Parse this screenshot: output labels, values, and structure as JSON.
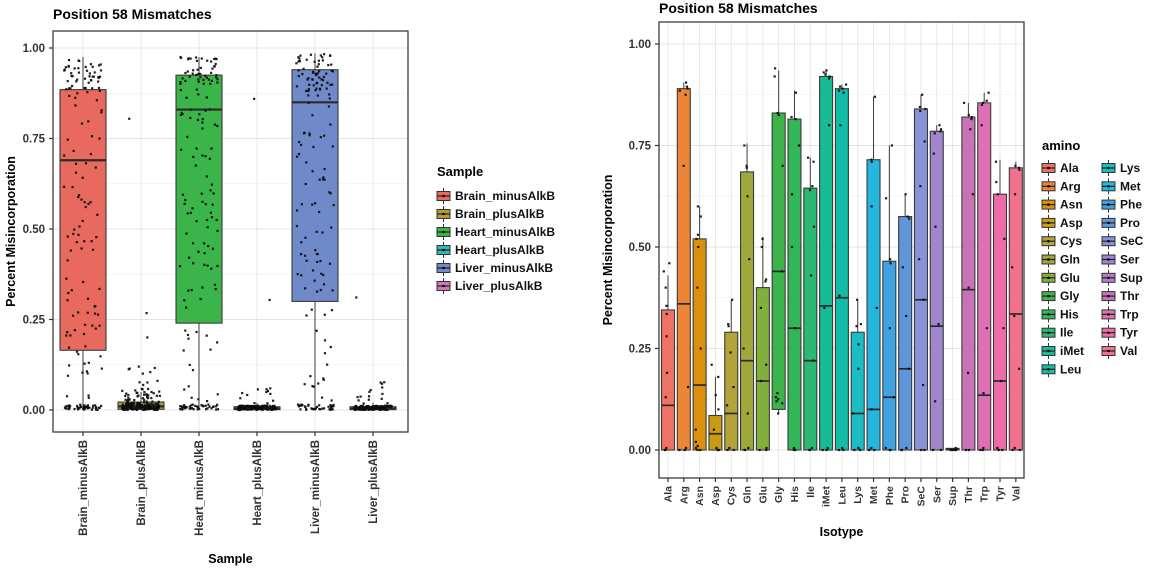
{
  "page": {
    "background": "#ffffff"
  },
  "chart_data": [
    {
      "id": "sample-plot",
      "type": "box",
      "title": "Position 58 Mismatches",
      "xlabel": "Sample",
      "ylabel": "Percent Misincorporation",
      "ylim": [
        0,
        1
      ],
      "yticks": [
        0,
        0.25,
        0.5,
        0.75,
        1.0
      ],
      "ytick_labels": [
        "0.00",
        "0.25",
        "0.50",
        "0.75",
        "1.00"
      ],
      "grid": true,
      "legend": {
        "title": "Sample",
        "position": "right",
        "columns": 1
      },
      "categories": [
        "Brain_minusAlkB",
        "Brain_plusAlkB",
        "Heart_minusAlkB",
        "Heart_plusAlkB",
        "Liver_minusAlkB",
        "Liver_plusAlkB"
      ],
      "boxes": [
        {
          "category": "Brain_minusAlkB",
          "color": "#E8695E",
          "min": 0,
          "q1": 0.165,
          "median": 0.69,
          "q3": 0.885,
          "max": 0.975,
          "jitter_clusters": [
            {
              "lo": 0,
              "hi": 0.015,
              "n": 45
            },
            {
              "lo": 0.02,
              "hi": 0.165,
              "n": 14
            },
            {
              "lo": 0.17,
              "hi": 0.88,
              "n": 70
            },
            {
              "lo": 0.88,
              "hi": 0.975,
              "n": 46
            }
          ]
        },
        {
          "category": "Brain_plusAlkB",
          "color": "#B29C35",
          "min": 0,
          "q1": 0.002,
          "median": 0.01,
          "q3": 0.022,
          "max": 0.05,
          "jitter_clusters": [
            {
              "lo": 0,
              "hi": 0.02,
              "n": 130
            },
            {
              "lo": 0.02,
              "hi": 0.06,
              "n": 40
            },
            {
              "lo": 0.06,
              "hi": 0.12,
              "n": 10
            },
            {
              "lo": 0.2,
              "hi": 0.3,
              "n": 2
            },
            {
              "lo": 0.795,
              "hi": 0.805,
              "n": 1
            }
          ]
        },
        {
          "category": "Heart_minusAlkB",
          "color": "#3BB44A",
          "min": 0,
          "q1": 0.24,
          "median": 0.83,
          "q3": 0.925,
          "max": 0.975,
          "jitter_clusters": [
            {
              "lo": 0,
              "hi": 0.015,
              "n": 40
            },
            {
              "lo": 0.02,
              "hi": 0.24,
              "n": 16
            },
            {
              "lo": 0.24,
              "hi": 0.92,
              "n": 75
            },
            {
              "lo": 0.9,
              "hi": 0.98,
              "n": 42
            }
          ]
        },
        {
          "category": "Heart_plusAlkB",
          "color": "#2FBBB1",
          "min": 0,
          "q1": 0.001,
          "median": 0.004,
          "q3": 0.009,
          "max": 0.02,
          "jitter_clusters": [
            {
              "lo": 0,
              "hi": 0.012,
              "n": 150
            },
            {
              "lo": 0.015,
              "hi": 0.06,
              "n": 12
            },
            {
              "lo": 0.3,
              "hi": 0.32,
              "n": 1
            },
            {
              "lo": 0.855,
              "hi": 0.865,
              "n": 1
            }
          ]
        },
        {
          "category": "Liver_minusAlkB",
          "color": "#7089C8",
          "min": 0,
          "q1": 0.3,
          "median": 0.85,
          "q3": 0.94,
          "max": 0.985,
          "jitter_clusters": [
            {
              "lo": 0,
              "hi": 0.015,
              "n": 35
            },
            {
              "lo": 0.02,
              "hi": 0.3,
              "n": 18
            },
            {
              "lo": 0.31,
              "hi": 0.93,
              "n": 68
            },
            {
              "lo": 0.88,
              "hi": 0.985,
              "n": 52
            },
            {
              "lo": 0.905,
              "hi": 0.915,
              "n": 1
            }
          ]
        },
        {
          "category": "Liver_plusAlkB",
          "color": "#D378B9",
          "min": 0,
          "q1": 0.001,
          "median": 0.004,
          "q3": 0.009,
          "max": 0.02,
          "jitter_clusters": [
            {
              "lo": 0,
              "hi": 0.012,
              "n": 140
            },
            {
              "lo": 0.015,
              "hi": 0.08,
              "n": 15
            },
            {
              "lo": 0.3,
              "hi": 0.32,
              "n": 1
            }
          ]
        }
      ]
    },
    {
      "id": "isotype-plot",
      "type": "box",
      "title": "Position 58 Mismatches",
      "xlabel": "Isotype",
      "ylabel": "Percent Misincorporation",
      "ylim": [
        0,
        1
      ],
      "yticks": [
        0,
        0.25,
        0.5,
        0.75,
        1.0
      ],
      "ytick_labels": [
        "0.00",
        "0.25",
        "0.50",
        "0.75",
        "1.00"
      ],
      "grid": true,
      "legend": {
        "title": "amino",
        "position": "right",
        "columns": 2
      },
      "categories": [
        "Ala",
        "Arg",
        "Asn",
        "Asp",
        "Cys",
        "Gln",
        "Glu",
        "Gly",
        "His",
        "Ile",
        "iMet",
        "Leu",
        "Lys",
        "Met",
        "Phe",
        "Pro",
        "SeC",
        "Ser",
        "Sup",
        "Thr",
        "Trp",
        "Tyr",
        "Val"
      ],
      "boxes": [
        {
          "category": "Ala",
          "color": "#EF7365",
          "min": 0,
          "q1": 0,
          "median": 0.11,
          "q3": 0.345,
          "max": 0.43,
          "points": [
            0,
            0,
            0.005,
            0.13,
            0.19,
            0.28,
            0.335,
            0.355,
            0.4,
            0.44,
            0.46
          ]
        },
        {
          "category": "Arg",
          "color": "#EC8538",
          "min": 0,
          "q1": 0,
          "median": 0.36,
          "q3": 0.89,
          "max": 0.905,
          "points": [
            0,
            0,
            0.005,
            0.155,
            0.7,
            0.875,
            0.885,
            0.89,
            0.895,
            0.905
          ]
        },
        {
          "category": "Asn",
          "color": "#DB9010",
          "min": 0,
          "q1": 0,
          "median": 0.16,
          "q3": 0.52,
          "max": 0.6,
          "points": [
            0,
            0,
            0.005,
            0.01,
            0.02,
            0.05,
            0.25,
            0.4,
            0.5,
            0.52,
            0.53,
            0.575,
            0.6
          ]
        },
        {
          "category": "Asp",
          "color": "#C99B10",
          "min": 0,
          "q1": 0,
          "median": 0.04,
          "q3": 0.085,
          "max": 0.18,
          "points": [
            0,
            0,
            0.005,
            0.05,
            0.1,
            0.135,
            0.18,
            0.21
          ]
        },
        {
          "category": "Cys",
          "color": "#B4A23B",
          "min": 0,
          "q1": 0,
          "median": 0.09,
          "q3": 0.29,
          "max": 0.37,
          "points": [
            0,
            0,
            0.005,
            0.11,
            0.155,
            0.24,
            0.305,
            0.31,
            0.37
          ]
        },
        {
          "category": "Gln",
          "color": "#9FA83B",
          "min": 0,
          "q1": 0,
          "median": 0.22,
          "q3": 0.685,
          "max": 0.755,
          "points": [
            0,
            0,
            0.005,
            0.09,
            0.25,
            0.47,
            0.625,
            0.695,
            0.7,
            0.75
          ]
        },
        {
          "category": "Glu",
          "color": "#82AF3C",
          "min": 0,
          "q1": 0,
          "median": 0.17,
          "q3": 0.4,
          "max": 0.525,
          "points": [
            0,
            0,
            0.005,
            0.17,
            0.21,
            0.35,
            0.415,
            0.42,
            0.5,
            0.52
          ]
        },
        {
          "category": "Gly",
          "color": "#3CB44B",
          "min": 0.09,
          "q1": 0.1,
          "median": 0.44,
          "q3": 0.83,
          "max": 0.935,
          "points": [
            0.09,
            0.115,
            0.12,
            0.125,
            0.13,
            0.14,
            0.44,
            0.7,
            0.825,
            0.83,
            0.92,
            0.94
          ]
        },
        {
          "category": "His",
          "color": "#33B657",
          "min": 0,
          "q1": 0,
          "median": 0.3,
          "q3": 0.815,
          "max": 0.885,
          "points": [
            0,
            0,
            0.005,
            0.3,
            0.5,
            0.63,
            0.75,
            0.815,
            0.82,
            0.88
          ]
        },
        {
          "category": "Ile",
          "color": "#2BB873",
          "min": 0,
          "q1": 0,
          "median": 0.22,
          "q3": 0.645,
          "max": 0.72,
          "points": [
            0,
            0,
            0.005,
            0.22,
            0.43,
            0.55,
            0.64,
            0.65,
            0.71,
            0.72
          ]
        },
        {
          "category": "iMet",
          "color": "#17BC95",
          "min": 0,
          "q1": 0,
          "median": 0.355,
          "q3": 0.92,
          "max": 0.935,
          "points": [
            0,
            0,
            0.005,
            0.35,
            0.8,
            0.915,
            0.92,
            0.925,
            0.93,
            0.935
          ]
        },
        {
          "category": "Leu",
          "color": "#12BDA7",
          "min": 0,
          "q1": 0,
          "median": 0.375,
          "q3": 0.89,
          "max": 0.9,
          "points": [
            0,
            0,
            0.005,
            0.38,
            0.8,
            0.88,
            0.885,
            0.89,
            0.895,
            0.9
          ]
        },
        {
          "category": "Lys",
          "color": "#1ABDC3",
          "min": 0,
          "q1": 0,
          "median": 0.09,
          "q3": 0.29,
          "max": 0.37,
          "points": [
            0,
            0,
            0.005,
            0.09,
            0.2,
            0.26,
            0.305,
            0.31,
            0.37
          ]
        },
        {
          "category": "Met",
          "color": "#25B6DE",
          "min": 0,
          "q1": 0,
          "median": 0.1,
          "q3": 0.715,
          "max": 0.87,
          "points": [
            0,
            0,
            0.005,
            0.1,
            0.35,
            0.6,
            0.71,
            0.715,
            0.87
          ]
        },
        {
          "category": "Phe",
          "color": "#3FA2E2",
          "min": 0,
          "q1": 0,
          "median": 0.13,
          "q3": 0.465,
          "max": 0.75,
          "points": [
            0,
            0,
            0.005,
            0.13,
            0.3,
            0.46,
            0.47,
            0.62,
            0.75
          ]
        },
        {
          "category": "Pro",
          "color": "#5E95DB",
          "min": 0,
          "q1": 0,
          "median": 0.2,
          "q3": 0.575,
          "max": 0.63,
          "points": [
            0,
            0,
            0.005,
            0.2,
            0.33,
            0.45,
            0.57,
            0.575,
            0.63
          ]
        },
        {
          "category": "SeC",
          "color": "#8A92D8",
          "min": 0,
          "q1": 0,
          "median": 0.37,
          "q3": 0.84,
          "max": 0.875,
          "points": [
            0,
            0,
            0.16,
            0.37,
            0.47,
            0.65,
            0.76,
            0.835,
            0.84,
            0.845,
            0.875
          ]
        },
        {
          "category": "Ser",
          "color": "#9F86CD",
          "min": 0,
          "q1": 0,
          "median": 0.305,
          "q3": 0.785,
          "max": 0.8,
          "points": [
            0,
            0,
            0.12,
            0.31,
            0.55,
            0.73,
            0.78,
            0.785,
            0.79,
            0.8
          ]
        },
        {
          "category": "Sup",
          "color": "#B77CC9",
          "min": 0,
          "q1": 0,
          "median": 0.002,
          "q3": 0.004,
          "max": 0.006,
          "points": [
            0,
            0,
            0,
            0,
            0.005
          ]
        },
        {
          "category": "Thr",
          "color": "#C873B6",
          "min": 0,
          "q1": 0,
          "median": 0.395,
          "q3": 0.82,
          "max": 0.855,
          "points": [
            0,
            0,
            0.19,
            0.4,
            0.63,
            0.79,
            0.815,
            0.82,
            0.825,
            0.855
          ]
        },
        {
          "category": "Trp",
          "color": "#DE6FB4",
          "min": 0,
          "q1": 0,
          "median": 0.135,
          "q3": 0.855,
          "max": 0.88,
          "points": [
            0,
            0,
            0.005,
            0.14,
            0.3,
            0.8,
            0.85,
            0.855,
            0.86,
            0.88
          ]
        },
        {
          "category": "Tyr",
          "color": "#EE6CA7",
          "min": 0,
          "q1": 0,
          "median": 0.17,
          "q3": 0.63,
          "max": 0.715,
          "points": [
            0,
            0,
            0.005,
            0.17,
            0.3,
            0.52,
            0.63,
            0.66,
            0.71
          ]
        },
        {
          "category": "Val",
          "color": "#F3708E",
          "min": 0,
          "q1": 0,
          "median": 0.335,
          "q3": 0.695,
          "max": 0.71,
          "points": [
            0,
            0,
            0.005,
            0.2,
            0.33,
            0.45,
            0.63,
            0.69,
            0.695,
            0.7
          ]
        }
      ]
    }
  ],
  "style": {
    "panel_border": "#3C3C3C",
    "grid_major": "#E4E4E4",
    "grid_minor": "#F1F1F1",
    "box_stroke": "#3A3A3A",
    "point_color": "#0D0D0D",
    "text_color": "#000000",
    "tick_text_color": "#333333"
  }
}
